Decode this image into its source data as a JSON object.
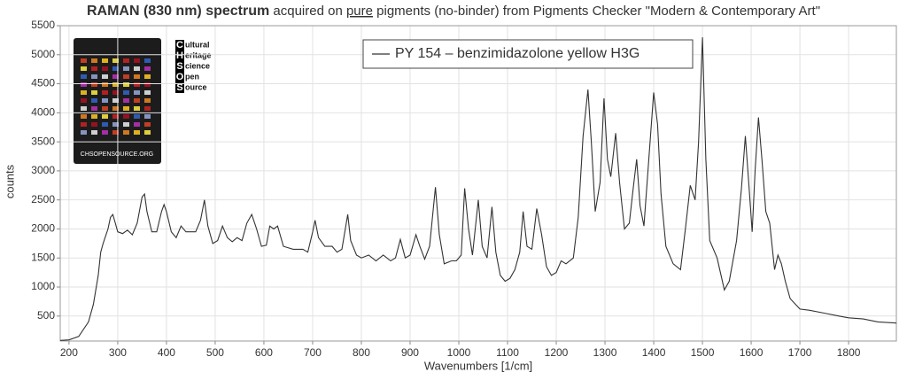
{
  "chart_data": {
    "type": "line",
    "title": {
      "bold": "RAMAN (830 nm) spectrum",
      "pre": " acquired on ",
      "underlined": "pure",
      "post": " pigments (no-binder) from Pigments Checker \"Modern & Contemporary Art\""
    },
    "xlabel": "Wavenumbers [1/cm]",
    "ylabel": "counts",
    "x": [
      182,
      200,
      220,
      240,
      250,
      260,
      265,
      270,
      280,
      285,
      290,
      295,
      300,
      310,
      320,
      330,
      340,
      350,
      355,
      360,
      370,
      380,
      390,
      395,
      400,
      410,
      420,
      430,
      440,
      450,
      460,
      470,
      478,
      485,
      495,
      505,
      515,
      525,
      535,
      545,
      555,
      565,
      575,
      585,
      595,
      605,
      612,
      620,
      628,
      640,
      660,
      680,
      690,
      700,
      705,
      712,
      725,
      740,
      750,
      760,
      772,
      778,
      790,
      800,
      815,
      830,
      845,
      860,
      870,
      880,
      890,
      900,
      912,
      920,
      930,
      940,
      952,
      960,
      970,
      985,
      995,
      1005,
      1012,
      1020,
      1028,
      1040,
      1048,
      1058,
      1068,
      1076,
      1085,
      1095,
      1105,
      1115,
      1125,
      1132,
      1140,
      1150,
      1160,
      1170,
      1180,
      1190,
      1200,
      1210,
      1220,
      1235,
      1245,
      1255,
      1265,
      1272,
      1280,
      1290,
      1298,
      1305,
      1312,
      1322,
      1330,
      1340,
      1350,
      1358,
      1365,
      1372,
      1380,
      1390,
      1400,
      1408,
      1415,
      1425,
      1440,
      1455,
      1465,
      1475,
      1485,
      1492,
      1500,
      1507,
      1515,
      1530,
      1545,
      1555,
      1570,
      1580,
      1588,
      1595,
      1602,
      1608,
      1615,
      1622,
      1630,
      1638,
      1648,
      1655,
      1662,
      1670,
      1680,
      1700,
      1720,
      1750,
      1780,
      1800,
      1830,
      1860,
      1898
    ],
    "series": [
      {
        "name": "PY 154 – benzimidazolone yellow H3G",
        "color": "#333333",
        "values": [
          80,
          90,
          150,
          400,
          700,
          1200,
          1600,
          1750,
          2000,
          2200,
          2250,
          2100,
          1950,
          1920,
          1980,
          1900,
          2100,
          2550,
          2600,
          2300,
          1950,
          1950,
          2300,
          2420,
          2300,
          1950,
          1850,
          2050,
          1950,
          1950,
          1950,
          2150,
          2500,
          2050,
          1750,
          1800,
          2050,
          1850,
          1780,
          1850,
          1800,
          2100,
          2250,
          2000,
          1700,
          1720,
          2050,
          2000,
          2050,
          1700,
          1650,
          1650,
          1600,
          1950,
          2150,
          1850,
          1700,
          1700,
          1600,
          1650,
          2250,
          1800,
          1550,
          1500,
          1550,
          1450,
          1550,
          1450,
          1500,
          1820,
          1500,
          1550,
          1900,
          1700,
          1480,
          1700,
          2720,
          1900,
          1400,
          1450,
          1450,
          1550,
          2700,
          2000,
          1550,
          2500,
          1700,
          1500,
          2380,
          1600,
          1200,
          1100,
          1150,
          1300,
          1600,
          2300,
          1700,
          1650,
          2350,
          1900,
          1350,
          1200,
          1250,
          1450,
          1400,
          1500,
          2200,
          3600,
          4400,
          3500,
          2300,
          2800,
          4250,
          3200,
          2900,
          3650,
          2800,
          2000,
          2100,
          2700,
          3200,
          2400,
          2050,
          3200,
          4350,
          3800,
          2600,
          1700,
          1400,
          1300,
          2000,
          2750,
          2500,
          3500,
          5300,
          3200,
          1800,
          1500,
          950,
          1100,
          1800,
          2700,
          3600,
          2800,
          1950,
          3000,
          3920,
          3200,
          2300,
          2100,
          1300,
          1550,
          1400,
          1100,
          800,
          620,
          600,
          550,
          500,
          470,
          450,
          400,
          380
        ]
      }
    ],
    "xlim": [
      182,
      1898
    ],
    "ylim": [
      70,
      5500
    ],
    "xticks": [
      200,
      300,
      400,
      500,
      600,
      700,
      800,
      900,
      1000,
      1100,
      1200,
      1300,
      1400,
      1500,
      1600,
      1700,
      1800
    ],
    "yticks": [
      500,
      1000,
      1500,
      2000,
      2500,
      3000,
      3500,
      4000,
      4500,
      5000,
      5500
    ],
    "grid": true,
    "logo": {
      "letters": [
        "C",
        "H",
        "S",
        "O",
        "S"
      ],
      "words": [
        "ultural",
        "eritage",
        "cience",
        "pen",
        "ource"
      ],
      "caption": "CHSOPENSOURCE.ORG"
    }
  }
}
